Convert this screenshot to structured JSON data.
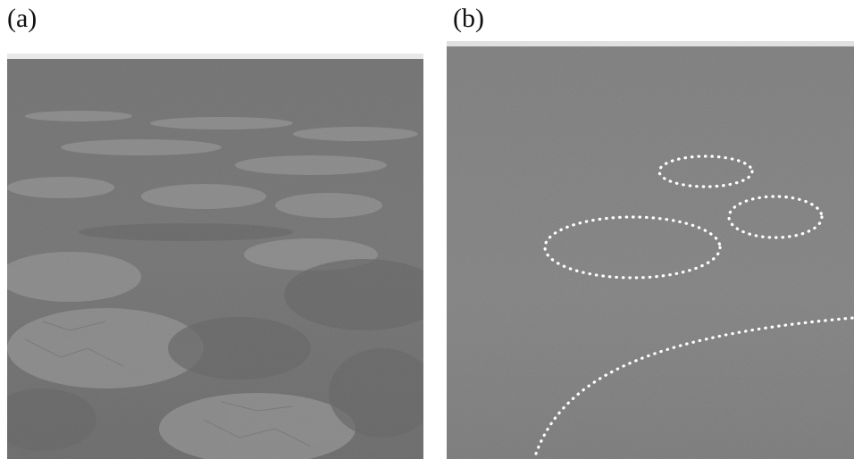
{
  "panels": [
    {
      "label": "(a)"
    },
    {
      "label": "(b)"
    }
  ],
  "colors": {
    "sky": "#f4f4f4",
    "tundra_dark": "#5f5f5f",
    "tundra_mid": "#7c7c7c",
    "patch_light": "#a6a6a6",
    "grass": "#6c6c6c",
    "overlay_dots": "#ffffff"
  }
}
